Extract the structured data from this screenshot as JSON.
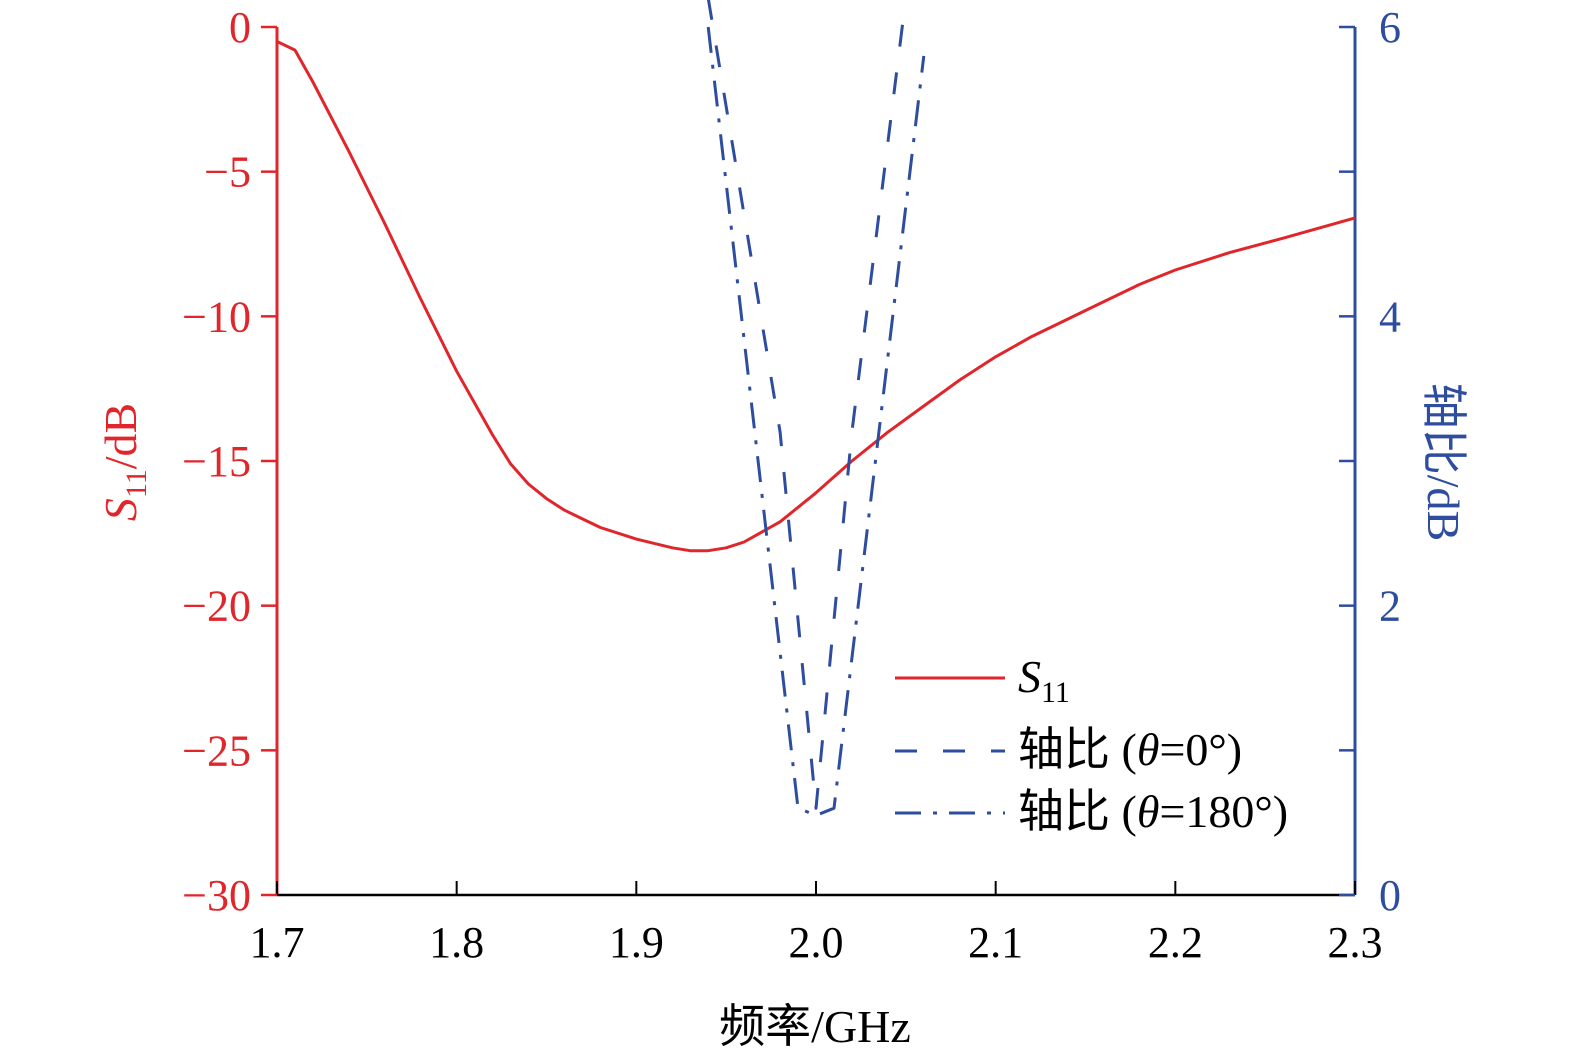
{
  "chart_data": {
    "type": "line",
    "title": "",
    "xlabel": "频率/GHz",
    "ylabel_left_main": "S",
    "ylabel_left_sub": "11",
    "ylabel_left_suffix": "/dB",
    "ylabel_right": "轴比/dB",
    "xlim": [
      1.7,
      2.3
    ],
    "ylim_left": [
      -30,
      0
    ],
    "ylim_right": [
      0,
      6
    ],
    "x_ticks": [
      1.7,
      1.8,
      1.9,
      2.0,
      2.1,
      2.2,
      2.3
    ],
    "x_tick_labels": [
      "1.7",
      "1.8",
      "1.9",
      "2.0",
      "2.1",
      "2.2",
      "2.3"
    ],
    "y_left_ticks": [
      0,
      -5,
      -10,
      -15,
      -20,
      -25,
      -30
    ],
    "y_left_tick_labels": [
      "0",
      "−5",
      "−10",
      "−15",
      "−20",
      "−25",
      "−30"
    ],
    "y_right_ticks": [
      0,
      2,
      4,
      6
    ],
    "y_right_tick_labels": [
      "0",
      "2",
      "4",
      "6"
    ],
    "grid": false,
    "legend_position": "bottom-right",
    "colors": {
      "left_axis": "#e0262b",
      "right_axis": "#2e4d9e"
    },
    "series": [
      {
        "name": "S11",
        "legend_main": "S",
        "legend_sub": "11",
        "axis": "left",
        "style": "solid",
        "color": "#e0262b",
        "x": [
          1.7,
          1.71,
          1.72,
          1.74,
          1.76,
          1.78,
          1.8,
          1.82,
          1.83,
          1.84,
          1.85,
          1.86,
          1.87,
          1.88,
          1.9,
          1.92,
          1.93,
          1.94,
          1.95,
          1.96,
          1.98,
          2.0,
          2.02,
          2.04,
          2.06,
          2.08,
          2.1,
          2.12,
          2.15,
          2.18,
          2.2,
          2.23,
          2.26,
          2.3
        ],
        "y": [
          -0.5,
          -0.8,
          -1.9,
          -4.3,
          -6.8,
          -9.4,
          -11.9,
          -14.1,
          -15.1,
          -15.8,
          -16.3,
          -16.7,
          -17.0,
          -17.3,
          -17.7,
          -18.0,
          -18.1,
          -18.1,
          -18.0,
          -17.8,
          -17.1,
          -16.1,
          -15.0,
          -14.0,
          -13.1,
          -12.2,
          -11.4,
          -10.7,
          -9.8,
          -8.9,
          -8.4,
          -7.8,
          -7.3,
          -6.6
        ]
      },
      {
        "name": "轴比 (θ=0°)",
        "legend_prefix": "轴比 (",
        "legend_theta": "θ",
        "legend_suffix": "=0°)",
        "axis": "right",
        "style": "dashed",
        "color": "#2e4d9e",
        "x": [
          1.94,
          1.98,
          2.0,
          2.02,
          2.05
        ],
        "y": [
          6.2,
          3.2,
          0.6,
          3.2,
          6.2
        ]
      },
      {
        "name": "轴比 (θ=180°)",
        "legend_prefix": "轴比 (",
        "legend_theta": "θ",
        "legend_suffix": "=180°)",
        "axis": "right",
        "style": "dashdot",
        "color": "#2e4d9e",
        "x": [
          1.94,
          1.99,
          2.0,
          2.01,
          2.06
        ],
        "y": [
          6.0,
          0.6,
          0.55,
          0.6,
          5.8
        ]
      }
    ]
  }
}
